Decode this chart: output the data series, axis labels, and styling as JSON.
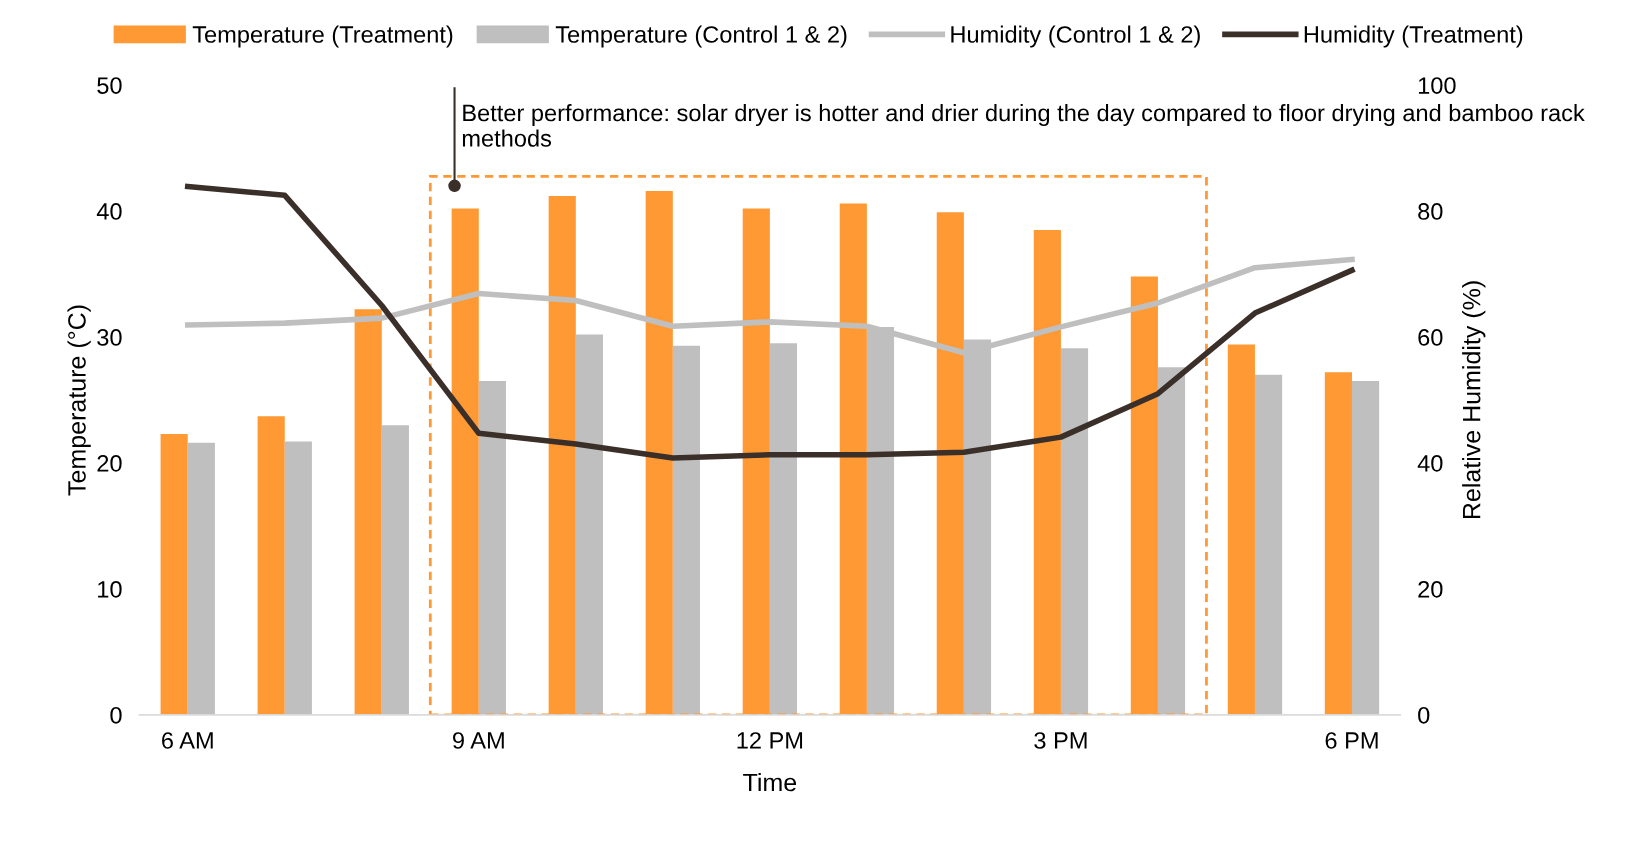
{
  "chart_data": {
    "type": "bar",
    "xlabel": "Time",
    "ylabel": "Temperature (°C)",
    "y2label": "Relative Humidity (%)",
    "categories": [
      "6 AM",
      null,
      null,
      "9 AM",
      null,
      null,
      "12 PM",
      null,
      null,
      "3 PM",
      null,
      null,
      "6 PM"
    ],
    "series": [
      {
        "name": "Temperature (Treatment)",
        "color": "#ff9933",
        "values": [
          22.3,
          23.7,
          32.2,
          40.2,
          41.2,
          41.6,
          40.2,
          40.6,
          39.9,
          38.5,
          34.8,
          29.4,
          27.2
        ]
      },
      {
        "name": "Temperature (Control 1 & 2)",
        "color": "#bfbfbf",
        "values": [
          21.6,
          21.7,
          23.0,
          26.5,
          30.2,
          29.3,
          29.5,
          30.8,
          29.8,
          29.1,
          27.6,
          27.0,
          26.5
        ]
      },
      {
        "name": "Humidity (Control 1 & 2)",
        "type": "line",
        "axis": "y2",
        "color": "#bfbfbf",
        "values": [
          61.9,
          62.2,
          63.0,
          66.9,
          65.8,
          61.7,
          62.4,
          61.7,
          57.5,
          61.6,
          65.4,
          71.0,
          72.3
        ]
      },
      {
        "name": "Humidity (Treatment)",
        "type": "line",
        "axis": "y2",
        "color": "#3b2f2a",
        "values": [
          83.9,
          82.5,
          65.0,
          44.7,
          43.0,
          40.8,
          41.3,
          41.3,
          41.7,
          44.1,
          51.0,
          63.8,
          70.6
        ]
      }
    ],
    "ylim": [
      0,
      50
    ],
    "yticks": [
      0,
      10,
      20,
      30,
      40,
      50
    ],
    "y2lim": [
      0,
      100
    ],
    "y2ticks": [
      0,
      20,
      40,
      60,
      80,
      100
    ],
    "annotations": [
      "Better performance: solar dryer is hotter and drier during the day compared to floor drying and bamboo rack methods"
    ],
    "legend": "top",
    "grid": false
  }
}
